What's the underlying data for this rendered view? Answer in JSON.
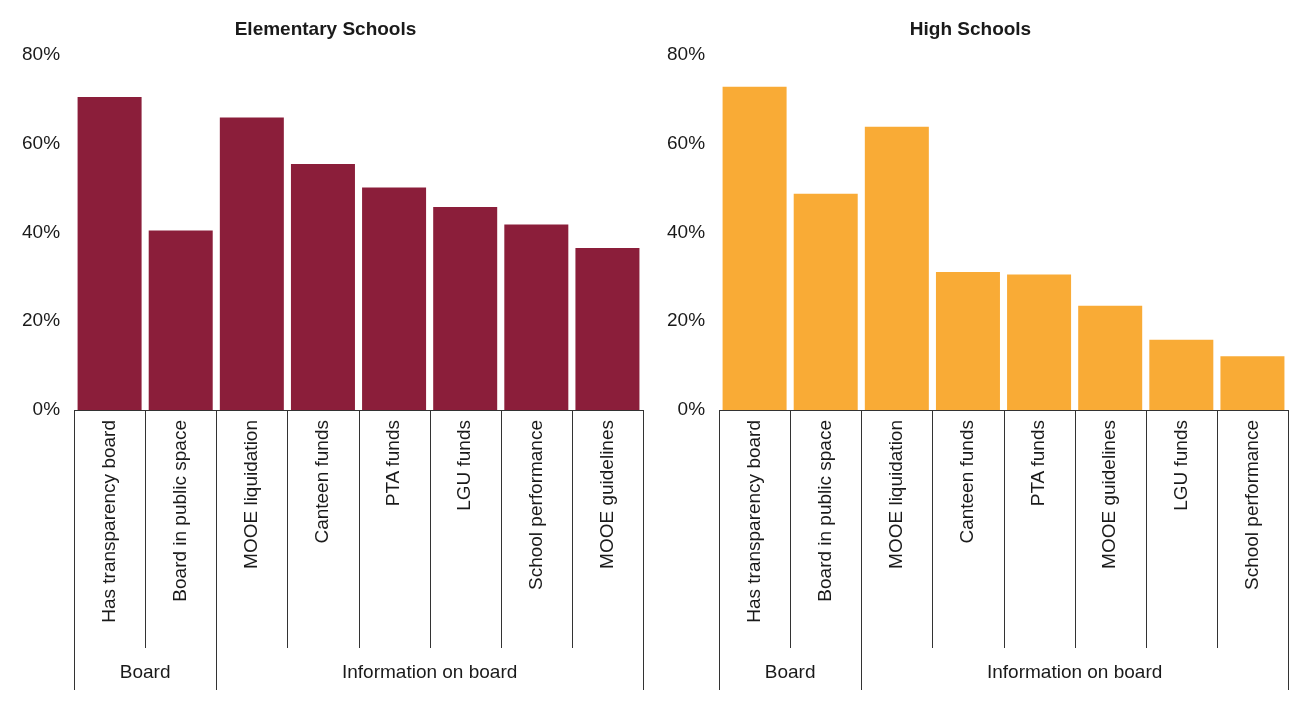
{
  "chart_data": [
    {
      "type": "bar",
      "title": "Elementary Schools",
      "categories": [
        "Has transparency board",
        "Board in public space",
        "MOOE liquidation",
        "Canteen funds",
        "PTA funds",
        "LGU funds",
        "School performance",
        "MOOE guidelines"
      ],
      "values": [
        70.5,
        40.4,
        65.9,
        55.4,
        50.1,
        45.7,
        41.8,
        36.5
      ],
      "color": "#8b1e3a",
      "ylim": [
        0,
        80
      ],
      "yticks": [
        {
          "value": 0,
          "label": "0%"
        },
        {
          "value": 20,
          "label": "20%"
        },
        {
          "value": 40,
          "label": "40%"
        },
        {
          "value": 60,
          "label": "60%"
        },
        {
          "value": 80,
          "label": "80%"
        }
      ],
      "grid": false,
      "legend": false,
      "annotations": [
        "Board",
        "Information on board"
      ]
    },
    {
      "type": "bar",
      "title": "High Schools",
      "categories": [
        "Has transparency board",
        "Board in public space",
        "MOOE liquidation",
        "Canteen funds",
        "PTA funds",
        "MOOE guidelines",
        "LGU funds",
        "School performance"
      ],
      "values": [
        72.8,
        48.7,
        63.8,
        31.1,
        30.5,
        23.5,
        15.8,
        12.1
      ],
      "color": "#f9ab36",
      "ylim": [
        0,
        80
      ],
      "yticks": [
        {
          "value": 0,
          "label": "0%"
        },
        {
          "value": 20,
          "label": "20%"
        },
        {
          "value": 40,
          "label": "40%"
        },
        {
          "value": 60,
          "label": "60%"
        },
        {
          "value": 80,
          "label": "80%"
        }
      ],
      "grid": false,
      "legend": false,
      "annotations": [
        "Board",
        "Information on board"
      ]
    }
  ]
}
